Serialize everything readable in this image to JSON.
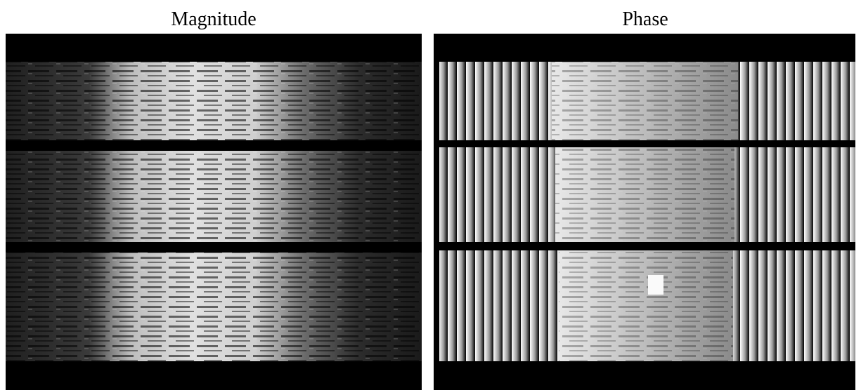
{
  "panels": [
    {
      "title": "Magnitude"
    },
    {
      "title": "Phase"
    }
  ]
}
